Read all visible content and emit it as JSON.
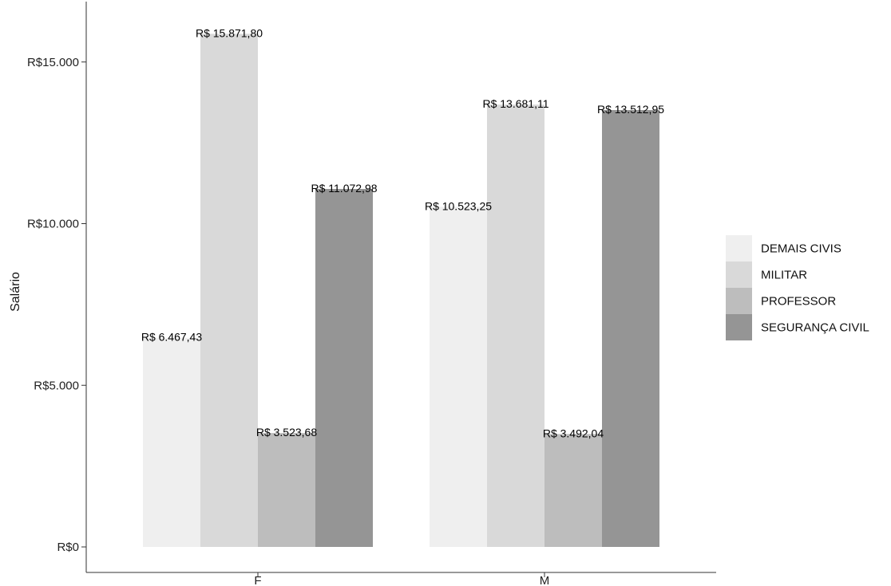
{
  "chart_data": {
    "type": "bar",
    "ylabel": "Salário",
    "xlabel": "",
    "categories": [
      "F",
      "M"
    ],
    "ylim": [
      0,
      16500
    ],
    "yticks": [
      {
        "value": 0,
        "label": "R$0"
      },
      {
        "value": 5000,
        "label": "R$5.000"
      },
      {
        "value": 10000,
        "label": "R$10.000"
      },
      {
        "value": 15000,
        "label": "R$15.000"
      }
    ],
    "grid": false,
    "legend_position": "right",
    "series": [
      {
        "name": "DEMAIS CIVIS",
        "color": "#efefef",
        "values": [
          6467.43,
          10523.25
        ],
        "labels": [
          "R$ 6.467,43",
          "R$ 10.523,25"
        ]
      },
      {
        "name": "MILITAR",
        "color": "#d9d9d9",
        "values": [
          15871.8,
          13681.11
        ],
        "labels": [
          "R$ 15.871,80",
          "R$ 13.681,11"
        ]
      },
      {
        "name": "PROFESSOR",
        "color": "#bdbdbd",
        "values": [
          3523.68,
          3492.04
        ],
        "labels": [
          "R$ 3.523,68",
          "R$ 3.492,04"
        ]
      },
      {
        "name": "SEGURANÇA CIVIL",
        "color": "#959595",
        "values": [
          11072.98,
          13512.95
        ],
        "labels": [
          "R$ 11.072,98",
          "R$ 13.512,95"
        ]
      }
    ]
  }
}
